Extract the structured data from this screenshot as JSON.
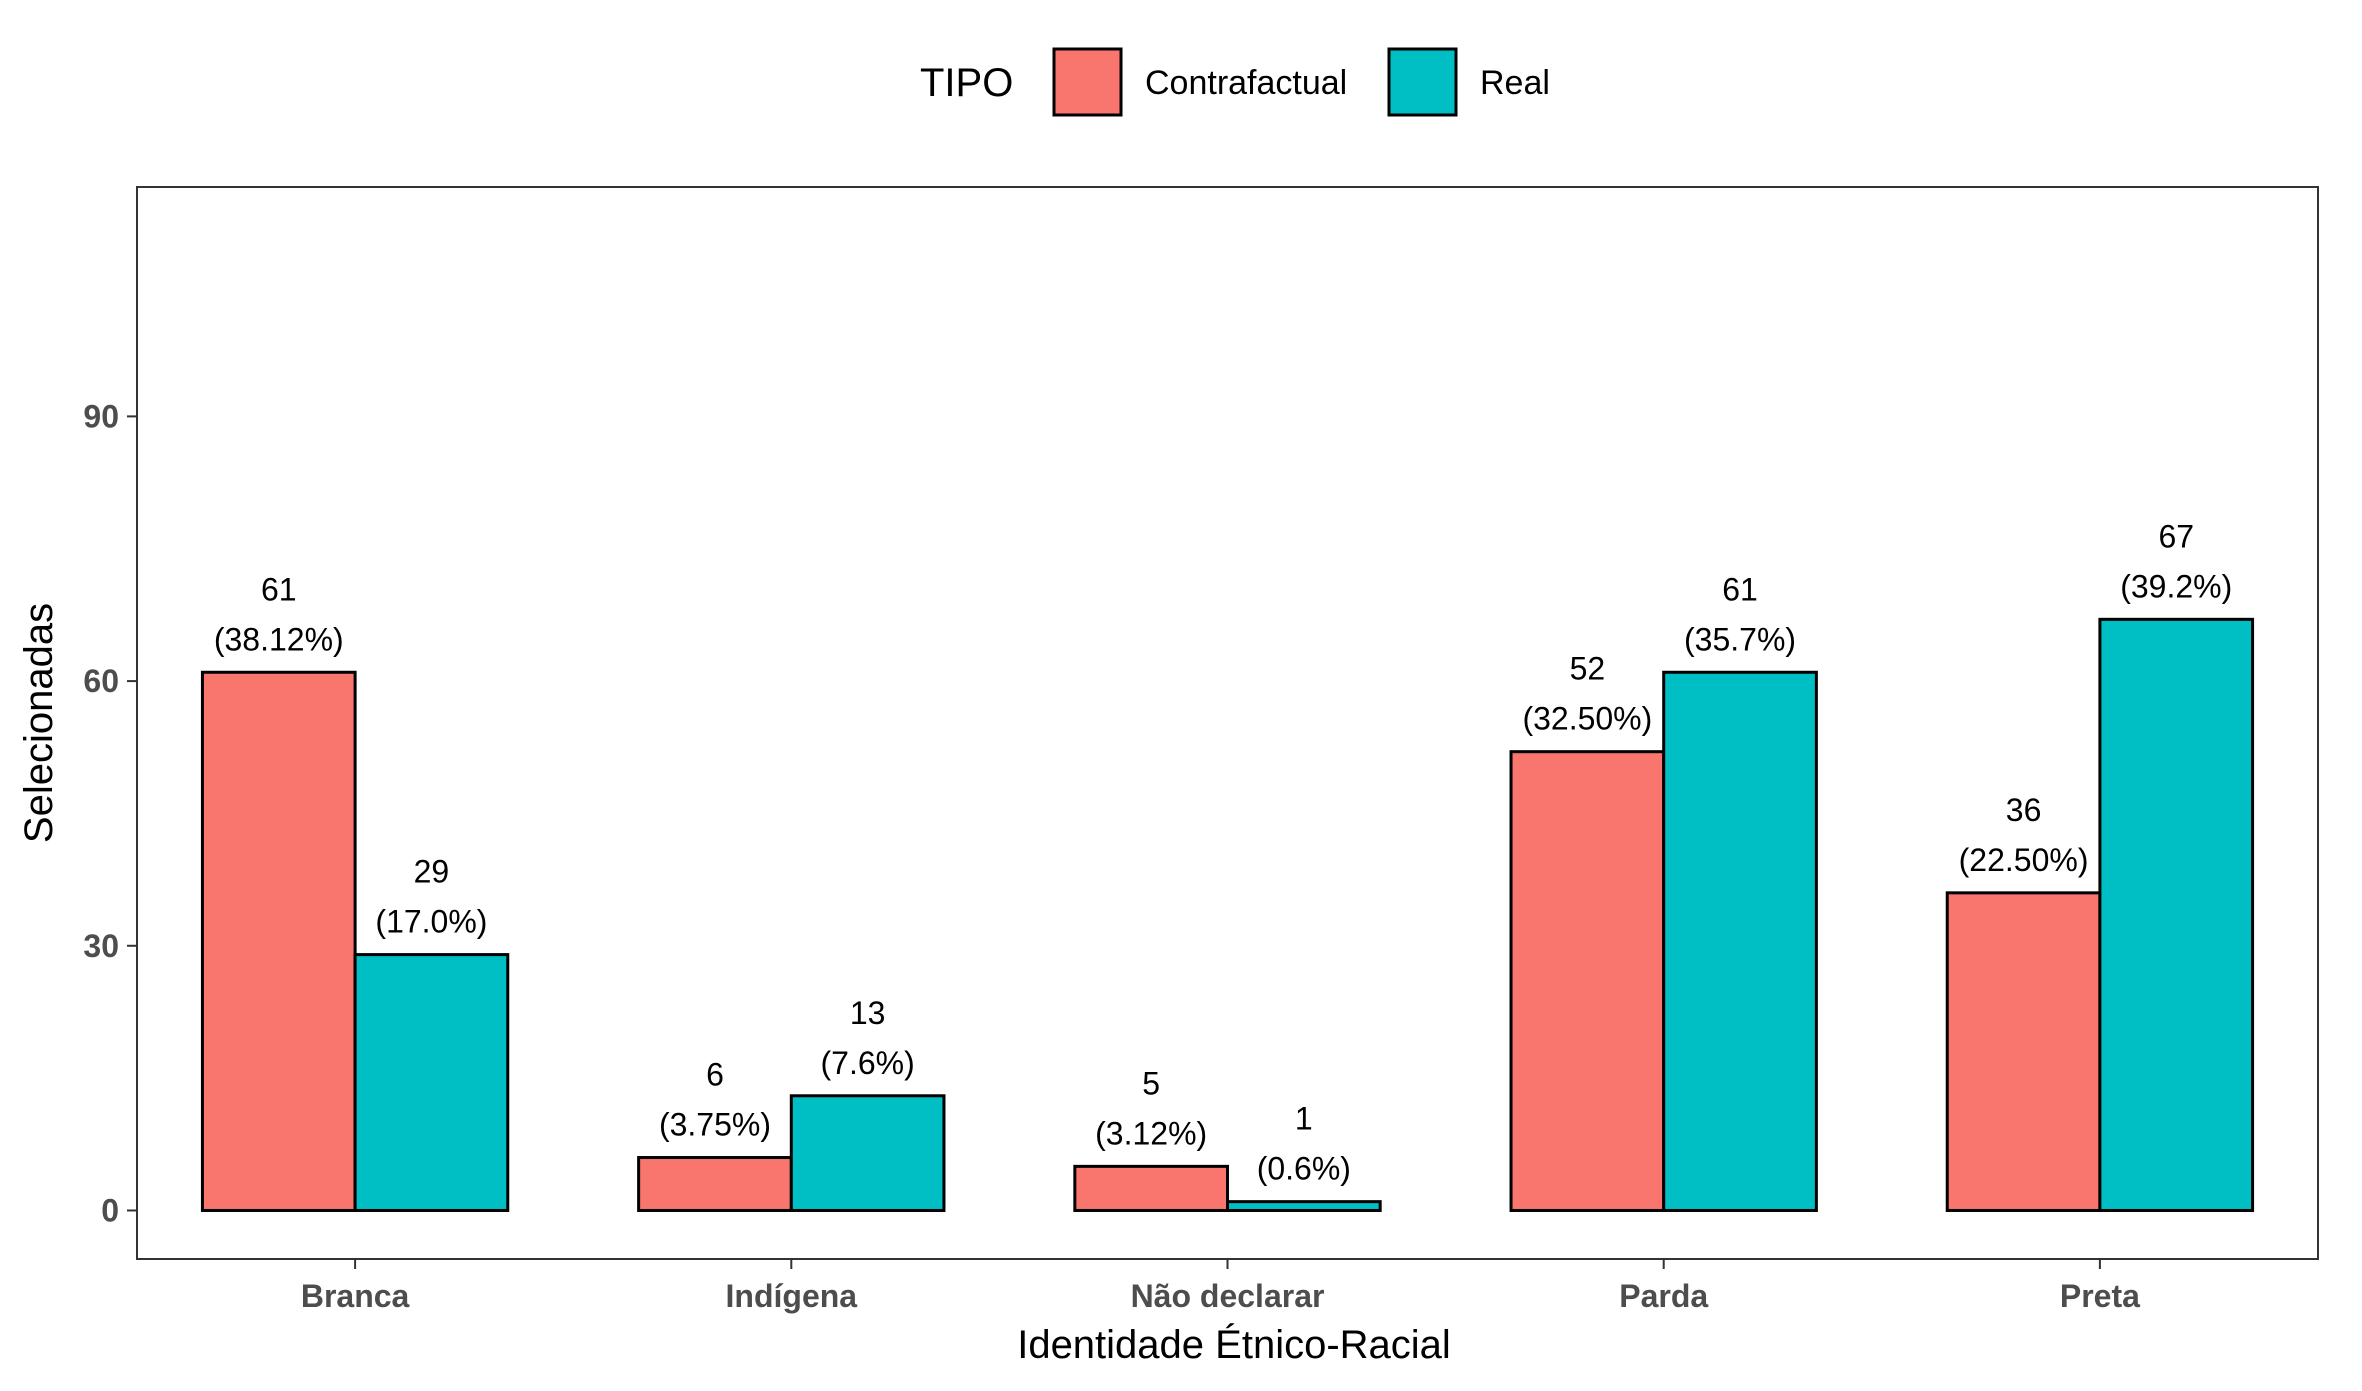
{
  "chart_data": {
    "type": "bar",
    "title": "",
    "xlabel": "Identidade Étnico-Racial",
    "ylabel": "Selecionadas",
    "ylim": [
      -5.5,
      116
    ],
    "yticks": [
      0,
      30,
      60,
      90
    ],
    "categories": [
      "Branca",
      "Indígena",
      "Não declarar",
      "Parda",
      "Preta"
    ],
    "legend": {
      "title": "TIPO",
      "position": "top"
    },
    "series": [
      {
        "name": "Contrafactual",
        "color": "#F8766D",
        "values": [
          61,
          6,
          5,
          52,
          36
        ],
        "labels": [
          "(38.12%)",
          "(3.75%)",
          "(3.12%)",
          "(32.50%)",
          "(22.50%)"
        ]
      },
      {
        "name": "Real",
        "color": "#00BFC4",
        "values": [
          29,
          13,
          1,
          61,
          67
        ],
        "labels": [
          "(17.0%)",
          "(7.6%)",
          "(0.6%)",
          "(35.7%)",
          "(39.2%)"
        ]
      }
    ]
  }
}
